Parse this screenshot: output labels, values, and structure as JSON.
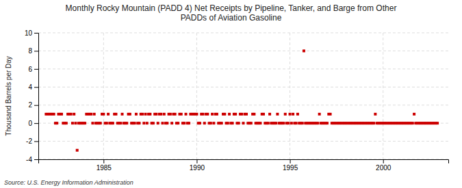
{
  "chart_data": {
    "type": "scatter",
    "title": "Monthly Rocky Mountain (PADD 4) Net Receipts by Pipeline, Tanker, and Barge from Other\nPADDs of Aviation Gasoline",
    "ylabel": "Thousand Barrels per Day",
    "source": "Source: U.S. Energy Information Administration",
    "color": "#cc0000",
    "marker": "square",
    "grid": true,
    "xlim": [
      1981.5,
      2003.5
    ],
    "xticks": [
      1985,
      1990,
      1995,
      2000
    ],
    "ylim": [
      -4,
      10
    ],
    "yticks": [
      -4,
      -2,
      0,
      2,
      4,
      6,
      8,
      10
    ],
    "x": [
      1981.917,
      1982.0,
      1982.083,
      1982.167,
      1982.25,
      1982.333,
      1982.417,
      1982.5,
      1982.583,
      1982.667,
      1982.75,
      1982.833,
      1982.917,
      1983.0,
      1983.083,
      1983.167,
      1983.25,
      1983.333,
      1983.417,
      1983.5,
      1983.583,
      1983.667,
      1983.75,
      1983.833,
      1983.917,
      1984.0,
      1984.083,
      1984.167,
      1984.25,
      1984.333,
      1984.417,
      1984.5,
      1984.583,
      1984.667,
      1984.75,
      1984.833,
      1984.917,
      1985.0,
      1985.083,
      1985.167,
      1985.25,
      1985.333,
      1985.417,
      1985.5,
      1985.583,
      1985.667,
      1985.75,
      1985.833,
      1985.917,
      1986.0,
      1986.083,
      1986.167,
      1986.25,
      1986.333,
      1986.417,
      1986.5,
      1986.583,
      1986.667,
      1986.75,
      1986.833,
      1986.917,
      1987.0,
      1987.083,
      1987.167,
      1987.25,
      1987.333,
      1987.417,
      1987.5,
      1987.583,
      1987.667,
      1987.75,
      1987.833,
      1987.917,
      1988.0,
      1988.083,
      1988.167,
      1988.25,
      1988.333,
      1988.417,
      1988.5,
      1988.583,
      1988.667,
      1988.75,
      1988.833,
      1988.917,
      1989.0,
      1989.083,
      1989.167,
      1989.25,
      1989.333,
      1989.417,
      1989.5,
      1989.583,
      1989.667,
      1989.75,
      1989.833,
      1989.917,
      1990.0,
      1990.083,
      1990.167,
      1990.25,
      1990.333,
      1990.417,
      1990.5,
      1990.583,
      1990.667,
      1990.75,
      1990.833,
      1990.917,
      1991.0,
      1991.083,
      1991.167,
      1991.25,
      1991.333,
      1991.417,
      1991.5,
      1991.583,
      1991.667,
      1991.75,
      1991.833,
      1991.917,
      1992.0,
      1992.083,
      1992.167,
      1992.25,
      1992.333,
      1992.417,
      1992.5,
      1992.583,
      1992.667,
      1992.75,
      1992.833,
      1992.917,
      1993.0,
      1993.083,
      1993.167,
      1993.25,
      1993.333,
      1993.417,
      1993.5,
      1993.583,
      1993.667,
      1993.75,
      1993.833,
      1993.917,
      1994.0,
      1994.083,
      1994.167,
      1994.25,
      1994.333,
      1994.417,
      1994.5,
      1994.583,
      1994.667,
      1994.75,
      1994.833,
      1994.917,
      1995.0,
      1995.083,
      1995.167,
      1995.25,
      1995.333,
      1995.417,
      1995.5,
      1995.583,
      1995.667,
      1995.75,
      1995.833,
      1995.917,
      1996.0,
      1996.083,
      1996.167,
      1996.25,
      1996.333,
      1996.417,
      1996.5,
      1996.583,
      1996.667,
      1996.75,
      1996.833,
      1996.917,
      1997.0,
      1997.083,
      1997.167,
      1997.25,
      1997.333,
      1997.417,
      1997.5,
      1997.583,
      1997.667,
      1997.75,
      1997.833,
      1997.917,
      1998.0,
      1998.083,
      1998.167,
      1998.25,
      1998.333,
      1998.417,
      1998.5,
      1998.583,
      1998.667,
      1998.75,
      1998.833,
      1998.917,
      1999.0,
      1999.083,
      1999.167,
      1999.25,
      1999.333,
      1999.417,
      1999.5,
      1999.583,
      1999.667,
      1999.75,
      1999.833,
      1999.917,
      2000.0,
      2000.083,
      2000.167,
      2000.25,
      2000.333,
      2000.417,
      2000.5,
      2000.583,
      2000.667,
      2000.75,
      2000.833,
      2000.917,
      2001.0,
      2001.083,
      2001.167,
      2001.25,
      2001.333,
      2001.417,
      2001.5,
      2001.583,
      2001.667,
      2001.75,
      2001.833,
      2001.917,
      2002.0,
      2002.083,
      2002.167,
      2002.25,
      2002.333,
      2002.417,
      2002.5,
      2002.583,
      2002.667,
      2002.75,
      2002.833,
      2002.917
    ],
    "values": [
      1,
      1,
      1,
      1,
      1,
      1,
      0,
      0,
      1,
      1,
      1,
      0,
      0,
      0,
      1,
      1,
      1,
      0,
      1,
      0,
      -3,
      0,
      0,
      0,
      0,
      0,
      1,
      1,
      1,
      1,
      0,
      1,
      0,
      0,
      0,
      0,
      1,
      1,
      0,
      0,
      1,
      0,
      0,
      0,
      1,
      1,
      0,
      0,
      0,
      1,
      0,
      0,
      0,
      1,
      1,
      0,
      0,
      0,
      1,
      0,
      0,
      1,
      1,
      0,
      1,
      0,
      1,
      1,
      0,
      0,
      1,
      1,
      0,
      1,
      1,
      0,
      1,
      0,
      0,
      1,
      1,
      0,
      1,
      1,
      0,
      0,
      1,
      1,
      0,
      0,
      1,
      0,
      0,
      1,
      1,
      1,
      1,
      1,
      0,
      0,
      1,
      1,
      0,
      1,
      1,
      0,
      0,
      1,
      0,
      1,
      1,
      0,
      0,
      0,
      1,
      1,
      0,
      0,
      1,
      0,
      0,
      1,
      1,
      0,
      0,
      1,
      1,
      0,
      1,
      1,
      0,
      0,
      0,
      1,
      1,
      0,
      0,
      0,
      0,
      1,
      1,
      0,
      0,
      0,
      1,
      0,
      0,
      0,
      0,
      1,
      0,
      0,
      0,
      0,
      1,
      0,
      0,
      1,
      0,
      1,
      0,
      0,
      1,
      0,
      0,
      0,
      8,
      0,
      0,
      0,
      0,
      0,
      0,
      0,
      0,
      0,
      1,
      0,
      0,
      0,
      0,
      0,
      1,
      1,
      0,
      0,
      0,
      0,
      0,
      0,
      0,
      0,
      0,
      0,
      0,
      0,
      0,
      0,
      0,
      0,
      0,
      0,
      0,
      0,
      0,
      0,
      0,
      0,
      0,
      0,
      0,
      0,
      1,
      0,
      0,
      0,
      0,
      0,
      0,
      0,
      0,
      0,
      0,
      0,
      0,
      0,
      0,
      0,
      0,
      0,
      0,
      0,
      0,
      0,
      0,
      0,
      0,
      1,
      0,
      0,
      0,
      0,
      0,
      0,
      0,
      0,
      0,
      0,
      0,
      0,
      0,
      0,
      0
    ]
  }
}
